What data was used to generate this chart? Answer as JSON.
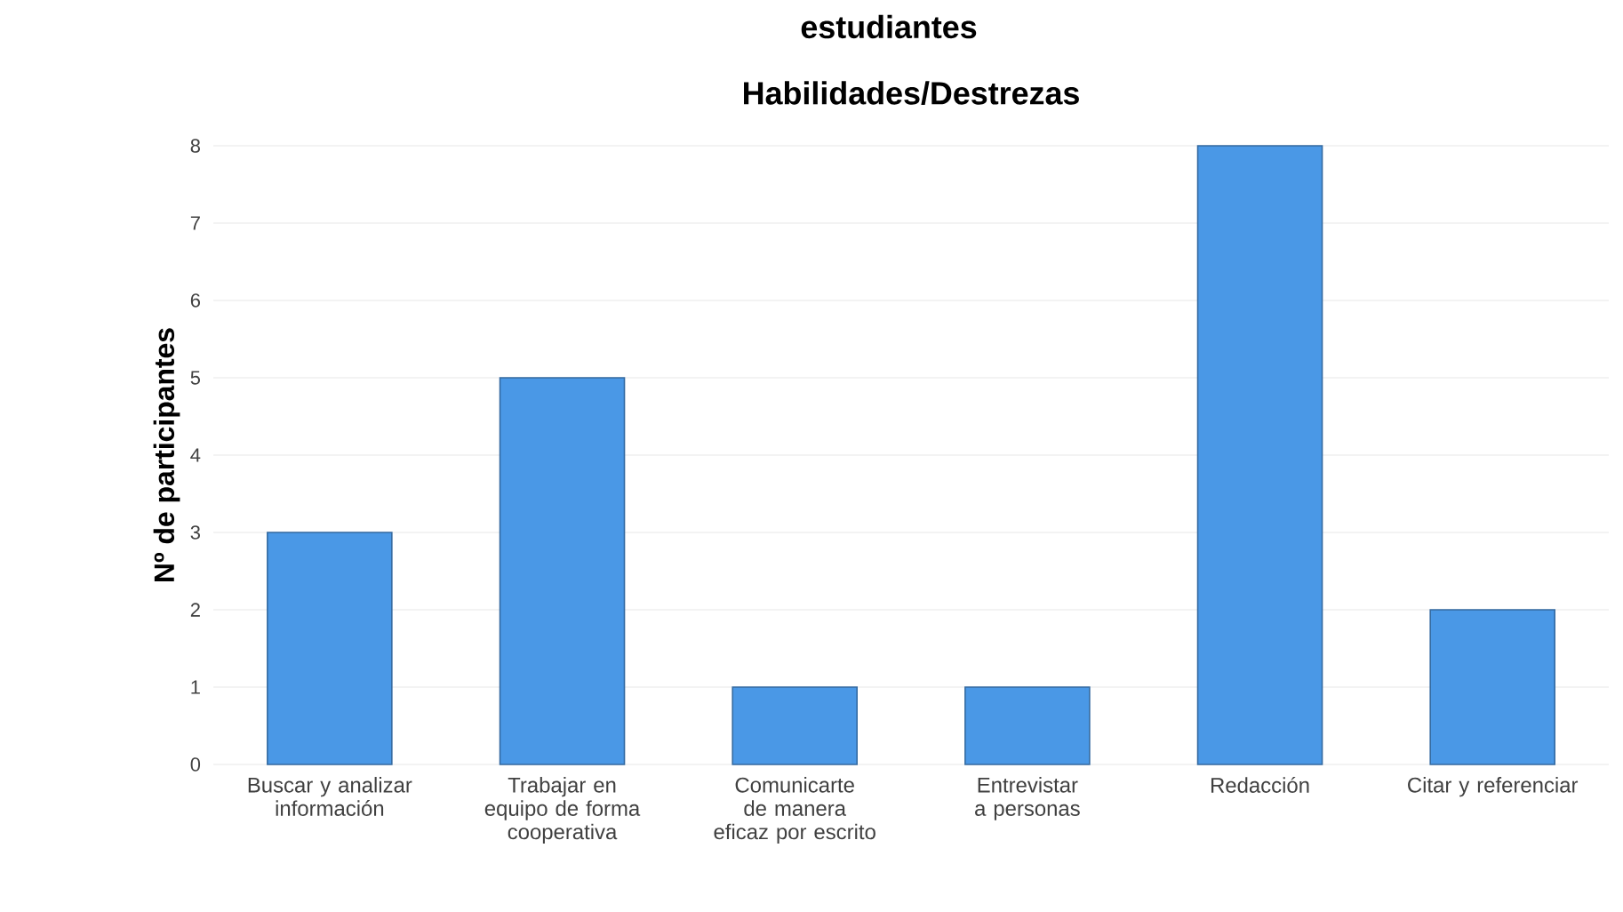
{
  "chart_data": {
    "type": "bar",
    "title": "estudiantes",
    "subtitle": "Habilidades/Destrezas",
    "ylabel": "Nº de participantes",
    "categories": [
      "Buscar y analizar información",
      "Trabajar en equipo de forma cooperativa",
      "Comunicarte de manera eficaz por escrito",
      "Entrevistar a personas",
      "Redacción",
      "Citar y referenciar"
    ],
    "values": [
      3,
      5,
      1,
      1,
      8,
      2
    ],
    "color": "#4a98e6",
    "ylim": [
      0,
      8
    ],
    "yticks": [
      0,
      1,
      2,
      3,
      4,
      5,
      6,
      7,
      8
    ],
    "grid": "y"
  }
}
